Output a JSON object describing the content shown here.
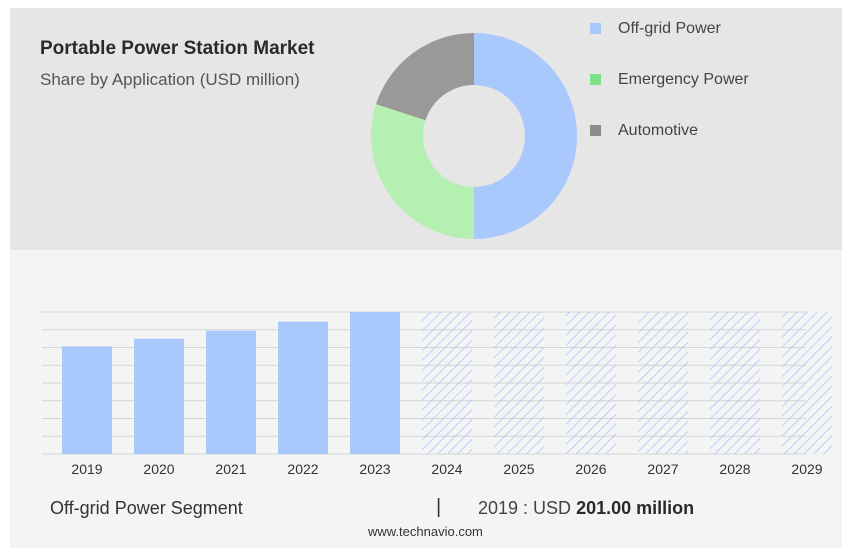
{
  "header": {
    "title": "Portable Power Station Market",
    "subtitle": "Share by Application (USD million)"
  },
  "chart_data": [
    {
      "type": "pie",
      "variant": "donut",
      "categories": [
        "Off-grid Power",
        "Emergency Power",
        "Automotive"
      ],
      "values": [
        50,
        30,
        20
      ],
      "unit": "%",
      "colors": [
        "#a9c8fb",
        "#b5efb2",
        "#999999"
      ],
      "legend_colors": [
        "#a9c8fb",
        "#7ee388",
        "#8c8c8c"
      ],
      "legend": "right"
    },
    {
      "type": "bar",
      "categories": [
        "2019",
        "2020",
        "2021",
        "2022",
        "2023",
        "2024",
        "2025",
        "2026",
        "2027",
        "2028",
        "2029"
      ],
      "values": [
        201,
        215,
        230,
        247,
        265,
        265,
        265,
        265,
        265,
        265,
        265
      ],
      "forecast_from": "2024",
      "ylim": [
        0,
        265
      ],
      "grid": true,
      "colors": {
        "actual": "#a9c8fb",
        "forecast": "#a9c8fb",
        "grid": "#d4d4d4"
      }
    }
  ],
  "footer": {
    "segment_label": "Off-grid Power Segment",
    "divider": "|",
    "value_prefix": "2019 : USD ",
    "value_bold": "201.00 million"
  },
  "watermark": "www.technavio.com"
}
